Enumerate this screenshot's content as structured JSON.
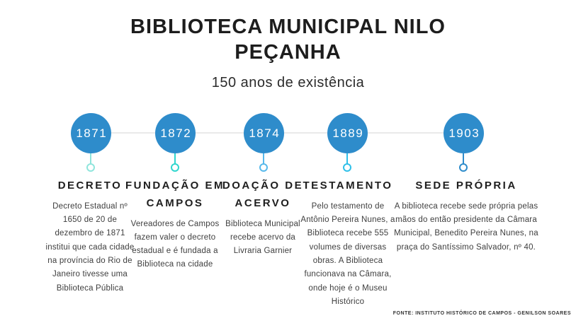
{
  "header": {
    "title_line1": "BIBLIOTECA MUNICIPAL NILO",
    "title_line2": "PEÇANHA",
    "subtitle": "150 anos de existência"
  },
  "timeline": {
    "node_color": "#2E8CCB",
    "line_color": "#E9E9E9",
    "events": [
      {
        "year": "1871",
        "accent": "#8FE5DC",
        "heading": "DECRETO",
        "body": "Decreto Estadual nº 1650 de 20 de dezembro de 1871 institui que cada cidade na província do Rio de Janeiro tivesse uma Biblioteca Pública"
      },
      {
        "year": "1872",
        "accent": "#2FD6CE",
        "heading": "FUNDAÇÃO EM CAMPOS",
        "body": "Vereadores de Campos fazem valer o decreto estadual e é fundada a Biblioteca na cidade"
      },
      {
        "year": "1874",
        "accent": "#57B9EB",
        "heading": "DOAÇÃO DE ACERVO",
        "body": "Biblioteca Municipal recebe acervo da Livraria Garnier"
      },
      {
        "year": "1889",
        "accent": "#2FC0E9",
        "heading": "TESTAMENTO",
        "body": "Pelo testamento de Antônio Pereira Nunes, a Biblioteca recebe 555 volumes de diversas obras. A Biblioteca funcionava na Câmara, onde hoje é o Museu Histórico"
      },
      {
        "year": "1903",
        "accent": "#2E8CCB",
        "heading": "SEDE PRÓPRIA",
        "body": "A biblioteca recebe sede própria pelas mãos do então presidente da Câmara Municipal, Benedito Pereira Nunes, na praça do Santíssimo Salvador, nº 40."
      }
    ]
  },
  "footer": {
    "source": "FONTE: INSTITUTO HISTÓRICO DE CAMPOS - GENILSON SOARES"
  }
}
